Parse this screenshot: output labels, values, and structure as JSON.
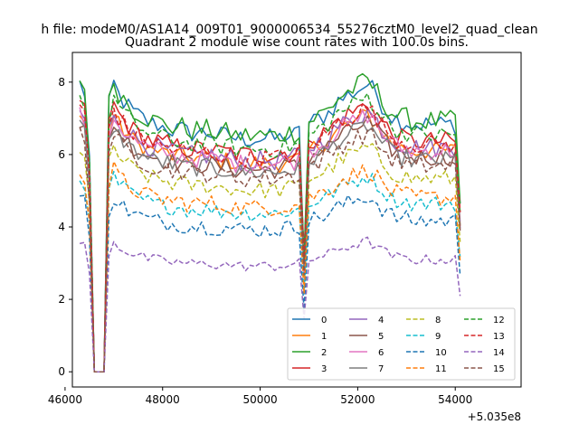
{
  "suptitle": "h file: modeM0/AS1A14_009T01_9000006534_55276cztM0_level2_quad_clean",
  "chart_data": {
    "type": "line",
    "title": "Quadrant 2 module wise count rates with 100.0s bins.",
    "xlabel": "",
    "ylabel": "",
    "x_offset_label": "+5.035e8",
    "xlim": [
      46150,
      55350
    ],
    "ylim": [
      -0.42,
      8.82
    ],
    "x_ticks": [
      46000,
      48000,
      50000,
      52000,
      54000
    ],
    "x_tick_labels": [
      "46000",
      "48000",
      "50000",
      "52000",
      "54000"
    ],
    "y_ticks": [
      0,
      2,
      4,
      6,
      8
    ],
    "y_tick_labels": [
      "0",
      "2",
      "4",
      "6",
      "8"
    ],
    "grid": false,
    "legend_position": "lower-right",
    "legend_columns": 4,
    "x_start": 46300,
    "x_step": 100,
    "base_pattern": [
      1.0,
      0.97,
      0.74,
      0.0,
      0.0,
      0.0,
      0.92,
      1.0,
      0.96,
      0.94,
      0.92,
      0.9,
      0.89,
      0.88,
      0.87,
      0.86,
      0.86,
      0.85,
      0.85,
      0.84,
      0.84,
      0.84,
      0.83,
      0.83,
      0.83,
      0.83,
      0.83,
      0.83,
      0.82,
      0.82,
      0.82,
      0.82,
      0.81,
      0.81,
      0.81,
      0.81,
      0.81,
      0.81,
      0.81,
      0.81,
      0.81,
      0.81,
      0.82,
      0.82,
      0.82,
      0.83,
      0.4,
      0.86,
      0.87,
      0.88,
      0.89,
      0.9,
      0.92,
      0.94,
      0.95,
      0.96,
      0.97,
      0.98,
      0.99,
      1.0,
      0.98,
      0.96,
      0.93,
      0.91,
      0.89,
      0.88,
      0.87,
      0.87,
      0.86,
      0.86,
      0.86,
      0.86,
      0.86,
      0.86,
      0.86,
      0.86,
      0.86,
      0.86,
      0.58
    ],
    "series": [
      {
        "name": "0",
        "color": "#1f77b4",
        "dashed": false,
        "peak": 7.95,
        "noise": 0.28
      },
      {
        "name": "1",
        "color": "#ff7f0e",
        "dashed": false,
        "peak": 7.1,
        "noise": 0.25
      },
      {
        "name": "2",
        "color": "#2ca02c",
        "dashed": false,
        "peak": 8.05,
        "noise": 0.3
      },
      {
        "name": "3",
        "color": "#d62728",
        "dashed": false,
        "peak": 7.4,
        "noise": 0.28
      },
      {
        "name": "4",
        "color": "#9467bd",
        "dashed": false,
        "peak": 7.2,
        "noise": 0.28
      },
      {
        "name": "5",
        "color": "#8c564b",
        "dashed": false,
        "peak": 6.9,
        "noise": 0.26
      },
      {
        "name": "6",
        "color": "#e377c2",
        "dashed": false,
        "peak": 7.1,
        "noise": 0.26
      },
      {
        "name": "7",
        "color": "#7f7f7f",
        "dashed": false,
        "peak": 6.8,
        "noise": 0.25
      },
      {
        "name": "8",
        "color": "#bcbd22",
        "dashed": true,
        "peak": 6.2,
        "noise": 0.24
      },
      {
        "name": "9",
        "color": "#17becf",
        "dashed": true,
        "peak": 5.4,
        "noise": 0.22
      },
      {
        "name": "10",
        "color": "#1f77b4",
        "dashed": true,
        "peak": 4.85,
        "noise": 0.24
      },
      {
        "name": "11",
        "color": "#ff7f0e",
        "dashed": true,
        "peak": 5.6,
        "noise": 0.24
      },
      {
        "name": "12",
        "color": "#2ca02c",
        "dashed": true,
        "peak": 7.6,
        "noise": 0.26
      },
      {
        "name": "13",
        "color": "#d62728",
        "dashed": true,
        "peak": 7.3,
        "noise": 0.26
      },
      {
        "name": "14",
        "color": "#9467bd",
        "dashed": true,
        "peak": 3.6,
        "noise": 0.14
      },
      {
        "name": "15",
        "color": "#8c564b",
        "dashed": true,
        "peak": 6.6,
        "noise": 0.25
      }
    ]
  }
}
